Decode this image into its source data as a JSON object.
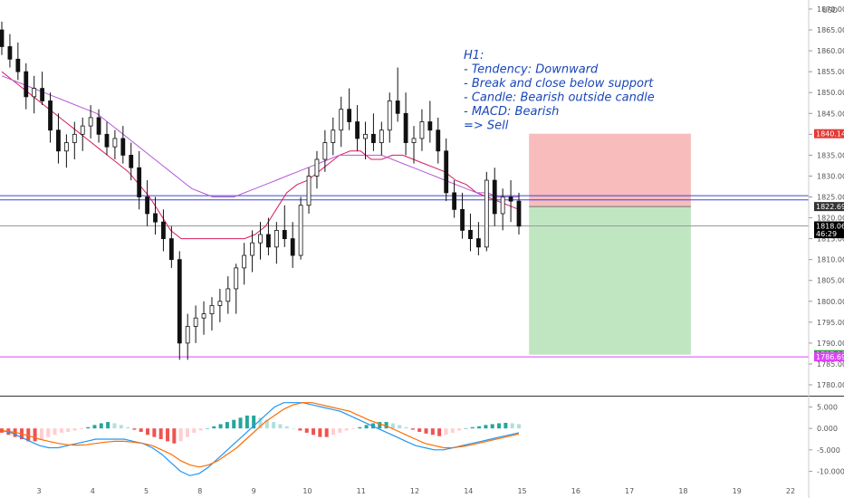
{
  "chart_data": {
    "type": "candlestick",
    "currency": "USD",
    "price_axis": {
      "ylim": [
        1776,
        1870
      ],
      "ticks": [
        "1870.000",
        "1865.000",
        "1860.000",
        "1855.000",
        "1850.000",
        "1845.000",
        "1840.000",
        "1835.000",
        "1830.000",
        "1825.000",
        "1820.000",
        "1815.000",
        "1810.000",
        "1805.000",
        "1800.000",
        "1795.000",
        "1790.000",
        "1785.000",
        "1780.000"
      ],
      "tick_values": [
        1870,
        1865,
        1860,
        1855,
        1850,
        1845,
        1840,
        1835,
        1830,
        1825,
        1820,
        1815,
        1810,
        1805,
        1800,
        1795,
        1790,
        1785,
        1780
      ]
    },
    "time_axis": {
      "labels": [
        "3",
        "4",
        "5",
        "8",
        "9",
        "10",
        "11",
        "12",
        "14",
        "15",
        "16",
        "17",
        "18",
        "19",
        "22"
      ],
      "positions": [
        0.5,
        14.5,
        28.5,
        42.5,
        56.5,
        70.5,
        84.5,
        98.5,
        112.5,
        126.5,
        140.5,
        154.5,
        168.5,
        182.5,
        196.5
      ]
    },
    "price_badges": [
      {
        "label": "1840.144",
        "value": 1840.144,
        "color": "#e53935"
      },
      {
        "label": "1822.692",
        "value": 1822.692,
        "color": "#333333"
      },
      {
        "label": "1818.060",
        "value": 1818.06,
        "color": "#000000"
      },
      {
        "label": "46:29",
        "value": 1816.2,
        "color": "#000000"
      },
      {
        "label": "1787.219",
        "value": 1787.219,
        "color": "#2e9c3a"
      },
      {
        "label": "1786.693",
        "value": 1786.693,
        "color": "#e040fb"
      }
    ],
    "horizontal_lines": [
      {
        "value": 1825.3,
        "color": "#3b47d8"
      },
      {
        "value": 1824.3,
        "color": "#3b47d8"
      },
      {
        "value": 1786.693,
        "color": "#e040fb"
      },
      {
        "value": 1818.06,
        "color": "#999999"
      }
    ],
    "position_tool": {
      "x_start": 128.3,
      "x_end": 170.5,
      "stop": 1840.144,
      "entry": 1822.692,
      "target": 1787.219,
      "risk_color": "#f8bcbc",
      "reward_color": "#bfe6c1"
    },
    "annotation": {
      "lines": [
        "H1:",
        "- Tendency: Downward",
        "- Break and close below support",
        "- Candle: Bearish outside candle",
        "- MACD: Bearish",
        "=> Sell"
      ]
    },
    "candles": [
      [
        1865,
        1867,
        1859,
        1861
      ],
      [
        1861,
        1864,
        1856,
        1858
      ],
      [
        1858,
        1862,
        1853,
        1855
      ],
      [
        1855,
        1857,
        1846,
        1849
      ],
      [
        1849,
        1854,
        1845,
        1851
      ],
      [
        1851,
        1855,
        1847,
        1848
      ],
      [
        1848,
        1850,
        1838,
        1841
      ],
      [
        1841,
        1845,
        1833,
        1836
      ],
      [
        1836,
        1840,
        1832,
        1838
      ],
      [
        1838,
        1843,
        1834,
        1840
      ],
      [
        1840,
        1844,
        1836,
        1842
      ],
      [
        1842,
        1847,
        1839,
        1844
      ],
      [
        1844,
        1846,
        1838,
        1840
      ],
      [
        1840,
        1843,
        1835,
        1837
      ],
      [
        1837,
        1841,
        1834,
        1839
      ],
      [
        1839,
        1842,
        1833,
        1835
      ],
      [
        1835,
        1838,
        1829,
        1832
      ],
      [
        1832,
        1836,
        1822,
        1825
      ],
      [
        1825,
        1829,
        1818,
        1821
      ],
      [
        1821,
        1825,
        1816,
        1819
      ],
      [
        1819,
        1822,
        1812,
        1815
      ],
      [
        1815,
        1818,
        1808,
        1810
      ],
      [
        1810,
        1812,
        1786,
        1790
      ],
      [
        1790,
        1797,
        1786,
        1794
      ],
      [
        1794,
        1799,
        1790,
        1796
      ],
      [
        1796,
        1800,
        1792,
        1797
      ],
      [
        1797,
        1801,
        1793,
        1799
      ],
      [
        1799,
        1803,
        1795,
        1800
      ],
      [
        1800,
        1806,
        1797,
        1803
      ],
      [
        1803,
        1809,
        1797,
        1808
      ],
      [
        1808,
        1814,
        1804,
        1811
      ],
      [
        1811,
        1817,
        1807,
        1814
      ],
      [
        1814,
        1819,
        1810,
        1816
      ],
      [
        1816,
        1820,
        1811,
        1813
      ],
      [
        1813,
        1819,
        1809,
        1817
      ],
      [
        1817,
        1823,
        1813,
        1815
      ],
      [
        1815,
        1819,
        1808,
        1811
      ],
      [
        1811,
        1825,
        1810,
        1823
      ],
      [
        1823,
        1832,
        1821,
        1830
      ],
      [
        1830,
        1836,
        1827,
        1834
      ],
      [
        1834,
        1841,
        1831,
        1838
      ],
      [
        1838,
        1844,
        1835,
        1841
      ],
      [
        1841,
        1849,
        1837,
        1846
      ],
      [
        1846,
        1851,
        1841,
        1843
      ],
      [
        1843,
        1847,
        1836,
        1839
      ],
      [
        1839,
        1843,
        1834,
        1840
      ],
      [
        1840,
        1845,
        1836,
        1838
      ],
      [
        1838,
        1843,
        1835,
        1841
      ],
      [
        1841,
        1850,
        1838,
        1848
      ],
      [
        1848,
        1856,
        1843,
        1845
      ],
      [
        1845,
        1850,
        1835,
        1838
      ],
      [
        1838,
        1842,
        1833,
        1839
      ],
      [
        1839,
        1846,
        1836,
        1843
      ],
      [
        1843,
        1848,
        1838,
        1841
      ],
      [
        1841,
        1844,
        1833,
        1836
      ],
      [
        1836,
        1839,
        1824,
        1826
      ],
      [
        1826,
        1829,
        1820,
        1822
      ],
      [
        1822,
        1826,
        1815,
        1817
      ],
      [
        1817,
        1821,
        1812,
        1815
      ],
      [
        1815,
        1819,
        1811,
        1813
      ],
      [
        1813,
        1831,
        1812,
        1829
      ],
      [
        1829,
        1832,
        1818,
        1821
      ],
      [
        1821,
        1827,
        1817,
        1825
      ],
      [
        1825,
        1829,
        1819,
        1824
      ],
      [
        1824,
        1826,
        1816,
        1818
      ]
    ],
    "ma_series": [
      {
        "name": "",
        "color": "#d81b60",
        "values": [
          1855,
          1853,
          1851,
          1849,
          1847,
          1845,
          1843,
          1841,
          1839,
          1837,
          1835,
          1833,
          1831,
          1828,
          1825,
          1821,
          1817,
          1815,
          1815,
          1815,
          1815,
          1815,
          1815,
          1815,
          1816,
          1818,
          1822,
          1826,
          1828,
          1829,
          1831,
          1833,
          1835,
          1836,
          1836,
          1834,
          1834,
          1835,
          1835,
          1834,
          1833,
          1832,
          1831,
          1829,
          1828,
          1826,
          1825,
          1824,
          1823,
          1822
        ]
      },
      {
        "name": "",
        "color": "#b45ad8",
        "values": [
          1854,
          1853,
          1852,
          1851,
          1850,
          1849,
          1848,
          1847,
          1846,
          1845,
          1843,
          1841,
          1839,
          1837,
          1835,
          1833,
          1831,
          1829,
          1827,
          1826,
          1825,
          1825,
          1825,
          1826,
          1827,
          1828,
          1829,
          1830,
          1831,
          1832,
          1833,
          1834,
          1835,
          1835,
          1835,
          1835,
          1835,
          1834,
          1833,
          1832,
          1831,
          1830,
          1829,
          1828,
          1827,
          1826,
          1826,
          1825,
          1825,
          1825
        ]
      }
    ],
    "macd": {
      "ylim": [
        -12,
        7
      ],
      "ticks": [
        "5.000",
        "0.000",
        "-5.000",
        "-10.000"
      ],
      "tick_values": [
        5,
        0,
        -5,
        -10
      ],
      "histogram": [
        -1,
        -1.5,
        -2,
        -2.5,
        -3,
        -3,
        -2.5,
        -2,
        -1.5,
        -1,
        -0.8,
        -0.5,
        -0.2,
        0.3,
        0.8,
        1.2,
        1.5,
        1.2,
        0.8,
        0.3,
        -0.3,
        -0.8,
        -1.5,
        -2,
        -2.5,
        -3,
        -3.5,
        -3,
        -2,
        -1,
        -0.5,
        0,
        0.5,
        1,
        1.5,
        2,
        2.5,
        3,
        3,
        2.5,
        2,
        1.5,
        1,
        0.5,
        0,
        -0.5,
        -1,
        -1.5,
        -2,
        -2,
        -1.5,
        -1,
        -0.5,
        -0.2,
        0.3,
        0.8,
        1.2,
        1.5,
        1.5,
        1.2,
        0.8,
        0.3,
        -0.3,
        -0.8,
        -1.2,
        -1.5,
        -1.8,
        -1.5,
        -1,
        -0.5,
        0,
        0.3,
        0.5,
        0.8,
        1,
        1.2,
        1.3,
        1.2,
        1
      ],
      "macd_line": [
        -0.5,
        -1,
        -2,
        -3,
        -4,
        -4.5,
        -4.5,
        -4,
        -3.5,
        -3,
        -2.5,
        -2.5,
        -2.5,
        -2.5,
        -3,
        -3.5,
        -4.5,
        -6,
        -8,
        -10,
        -11,
        -10.5,
        -9,
        -7,
        -5,
        -3,
        -1,
        1,
        3,
        5,
        6,
        6,
        6,
        5.5,
        5,
        4.5,
        4,
        3,
        2,
        1,
        0,
        -1,
        -2,
        -3,
        -4,
        -4.5,
        -5,
        -5,
        -4.5,
        -4,
        -3.5,
        -3,
        -2.5,
        -2,
        -1.5,
        -1
      ],
      "signal_line": [
        -0.5,
        -0.8,
        -1.2,
        -1.8,
        -2.5,
        -3,
        -3.5,
        -3.8,
        -3.9,
        -3.8,
        -3.5,
        -3.2,
        -3,
        -3,
        -3.2,
        -3.5,
        -4,
        -5,
        -6,
        -7.5,
        -8.5,
        -9,
        -8.5,
        -7.5,
        -6,
        -4.5,
        -2.5,
        -0.5,
        1.5,
        3,
        4.5,
        5.5,
        6,
        6,
        5.5,
        5,
        4.5,
        4,
        3,
        2,
        1.2,
        0.5,
        -0.5,
        -1.5,
        -2.5,
        -3.5,
        -4,
        -4.5,
        -4.5,
        -4.2,
        -3.8,
        -3.3,
        -2.8,
        -2.3,
        -1.8,
        -1.3
      ]
    }
  }
}
